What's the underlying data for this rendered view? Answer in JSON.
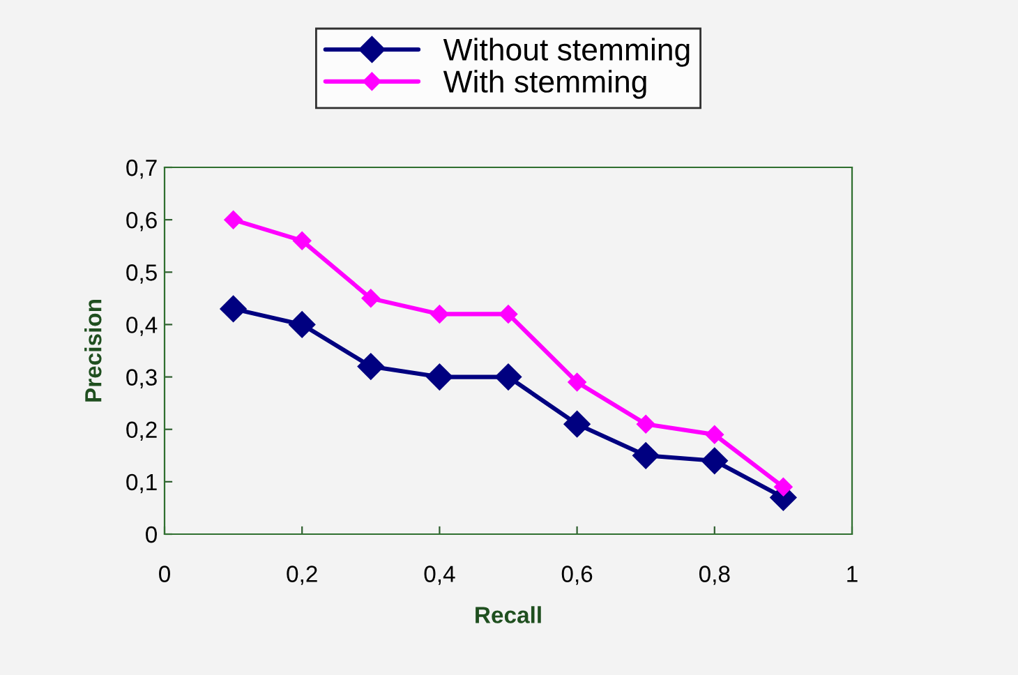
{
  "chart_data": {
    "type": "line",
    "xlabel": "Recall",
    "ylabel": "Precision",
    "x": [
      0.1,
      0.2,
      0.3,
      0.4,
      0.5,
      0.6,
      0.7,
      0.8,
      0.9
    ],
    "series": [
      {
        "name": "Without stemming",
        "color": "#000080",
        "values": [
          0.43,
          0.4,
          0.32,
          0.3,
          0.3,
          0.21,
          0.15,
          0.14,
          0.07
        ],
        "marker": "diamond"
      },
      {
        "name": "With stemming",
        "color": "#ff00ff",
        "values": [
          0.6,
          0.56,
          0.45,
          0.42,
          0.42,
          0.29,
          0.21,
          0.19,
          0.09
        ],
        "marker": "diamond"
      }
    ],
    "xlim": [
      0,
      1
    ],
    "xticks": [
      0,
      {
        "value": 0.2,
        "label": "0,2"
      },
      {
        "value": 0.4,
        "label": "0,4"
      },
      {
        "value": 0.6,
        "label": "0,6"
      },
      {
        "value": 0.8,
        "label": "0,8"
      },
      1
    ],
    "ylim": [
      0,
      0.7
    ],
    "yticks": [
      0,
      {
        "value": 0.1,
        "label": "0,1"
      },
      {
        "value": 0.2,
        "label": "0,2"
      },
      {
        "value": 0.3,
        "label": "0,3"
      },
      {
        "value": 0.4,
        "label": "0,4"
      },
      {
        "value": 0.5,
        "label": "0,5"
      },
      {
        "value": 0.6,
        "label": "0,6"
      },
      {
        "value": 0.7,
        "label": "0,7"
      }
    ],
    "legend": "top",
    "grid": false,
    "line_style": "solid"
  }
}
